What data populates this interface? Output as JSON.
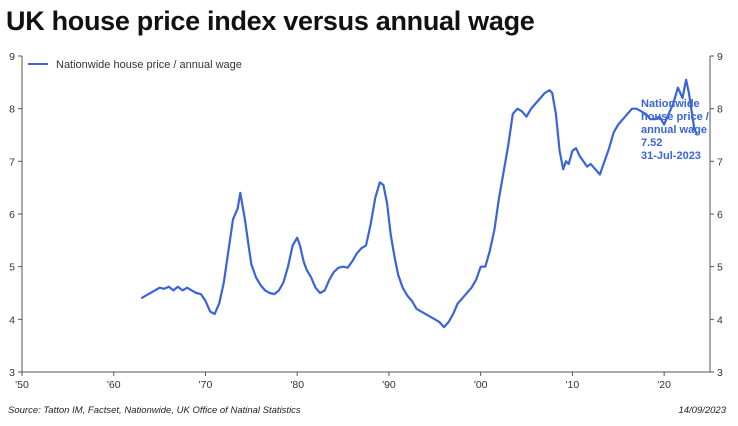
{
  "title": "UK house price index versus annual wage",
  "source": "Source: Tatton IM, Factset,  Nationwide, UK Office of Natinal Statistics",
  "date": "14/09/2023",
  "colors": {
    "series": "#3a64d8",
    "axis": "#555555",
    "text": "#333333",
    "annotation": "#3a64d8"
  },
  "annotation": {
    "lines": [
      "Nationwide",
      "house price /",
      "annual wage",
      "7.52",
      "31-Jul-2023"
    ]
  },
  "chart_data": {
    "type": "line",
    "title": "UK house price index versus annual wage",
    "xlabel": "",
    "ylabel": "",
    "xlim": [
      1950,
      2025
    ],
    "ylim": [
      3,
      9
    ],
    "x_ticks": [
      1950,
      1960,
      1970,
      1980,
      1990,
      2000,
      2010,
      2020
    ],
    "x_tick_labels": [
      "'50",
      "'60",
      "'70",
      "'80",
      "'90",
      "'00",
      "'10",
      "'20"
    ],
    "y_ticks": [
      3,
      4,
      5,
      6,
      7,
      8,
      9
    ],
    "y_tick_labels": [
      "3",
      "4",
      "5",
      "6",
      "7",
      "8",
      "9"
    ],
    "grid": false,
    "legend_position": "top-left",
    "series": [
      {
        "name": "Nationwide house price / annual wage",
        "x": [
          1963.0,
          1963.5,
          1964.0,
          1964.5,
          1965.0,
          1965.5,
          1966.0,
          1966.5,
          1967.0,
          1967.5,
          1968.0,
          1968.5,
          1969.0,
          1969.5,
          1970.0,
          1970.5,
          1971.0,
          1971.5,
          1972.0,
          1972.5,
          1973.0,
          1973.5,
          1973.8,
          1974.3,
          1974.7,
          1975.0,
          1975.5,
          1976.0,
          1976.5,
          1977.0,
          1977.5,
          1978.0,
          1978.5,
          1979.0,
          1979.5,
          1980.0,
          1980.3,
          1980.7,
          1981.0,
          1981.5,
          1982.0,
          1982.5,
          1983.0,
          1983.5,
          1984.0,
          1984.5,
          1985.0,
          1985.5,
          1986.0,
          1986.5,
          1987.0,
          1987.5,
          1988.0,
          1988.5,
          1989.0,
          1989.4,
          1989.8,
          1990.2,
          1990.6,
          1991.0,
          1991.5,
          1992.0,
          1992.5,
          1993.0,
          1993.5,
          1994.0,
          1994.5,
          1995.0,
          1995.5,
          1996.0,
          1996.5,
          1997.0,
          1997.5,
          1998.0,
          1998.5,
          1999.0,
          1999.5,
          2000.0,
          2000.5,
          2001.0,
          2001.5,
          2002.0,
          2002.5,
          2003.0,
          2003.5,
          2004.0,
          2004.5,
          2005.0,
          2005.5,
          2006.0,
          2006.5,
          2007.0,
          2007.5,
          2007.8,
          2008.2,
          2008.6,
          2009.0,
          2009.3,
          2009.6,
          2010.0,
          2010.4,
          2010.8,
          2011.2,
          2011.6,
          2012.0,
          2012.5,
          2013.0,
          2013.5,
          2014.0,
          2014.5,
          2015.0,
          2015.5,
          2016.0,
          2016.5,
          2017.0,
          2017.5,
          2018.0,
          2018.5,
          2019.0,
          2019.5,
          2020.0,
          2020.5,
          2021.0,
          2021.5,
          2022.0,
          2022.4,
          2022.7,
          2023.0,
          2023.3,
          2023.58
        ],
        "values": [
          4.4,
          4.45,
          4.5,
          4.55,
          4.6,
          4.58,
          4.62,
          4.55,
          4.62,
          4.55,
          4.6,
          4.55,
          4.5,
          4.48,
          4.35,
          4.15,
          4.1,
          4.3,
          4.7,
          5.3,
          5.9,
          6.1,
          6.4,
          5.9,
          5.4,
          5.05,
          4.8,
          4.65,
          4.55,
          4.5,
          4.48,
          4.55,
          4.7,
          5.0,
          5.4,
          5.55,
          5.4,
          5.1,
          4.95,
          4.8,
          4.6,
          4.5,
          4.55,
          4.75,
          4.9,
          4.98,
          5.0,
          4.98,
          5.1,
          5.25,
          5.35,
          5.4,
          5.8,
          6.3,
          6.6,
          6.55,
          6.2,
          5.6,
          5.2,
          4.85,
          4.6,
          4.45,
          4.35,
          4.2,
          4.15,
          4.1,
          4.05,
          4.0,
          3.95,
          3.85,
          3.95,
          4.1,
          4.3,
          4.4,
          4.5,
          4.6,
          4.75,
          5.0,
          5.0,
          5.3,
          5.7,
          6.3,
          6.8,
          7.3,
          7.9,
          8.0,
          7.95,
          7.85,
          8.0,
          8.1,
          8.2,
          8.3,
          8.35,
          8.3,
          7.9,
          7.2,
          6.85,
          7.0,
          6.95,
          7.2,
          7.25,
          7.1,
          7.0,
          6.9,
          6.95,
          6.85,
          6.75,
          7.0,
          7.25,
          7.55,
          7.7,
          7.8,
          7.9,
          8.0,
          8.0,
          7.95,
          7.9,
          7.8,
          7.8,
          7.85,
          7.7,
          7.9,
          8.1,
          8.4,
          8.2,
          8.55,
          8.3,
          7.95,
          7.6,
          7.52
        ]
      }
    ]
  }
}
